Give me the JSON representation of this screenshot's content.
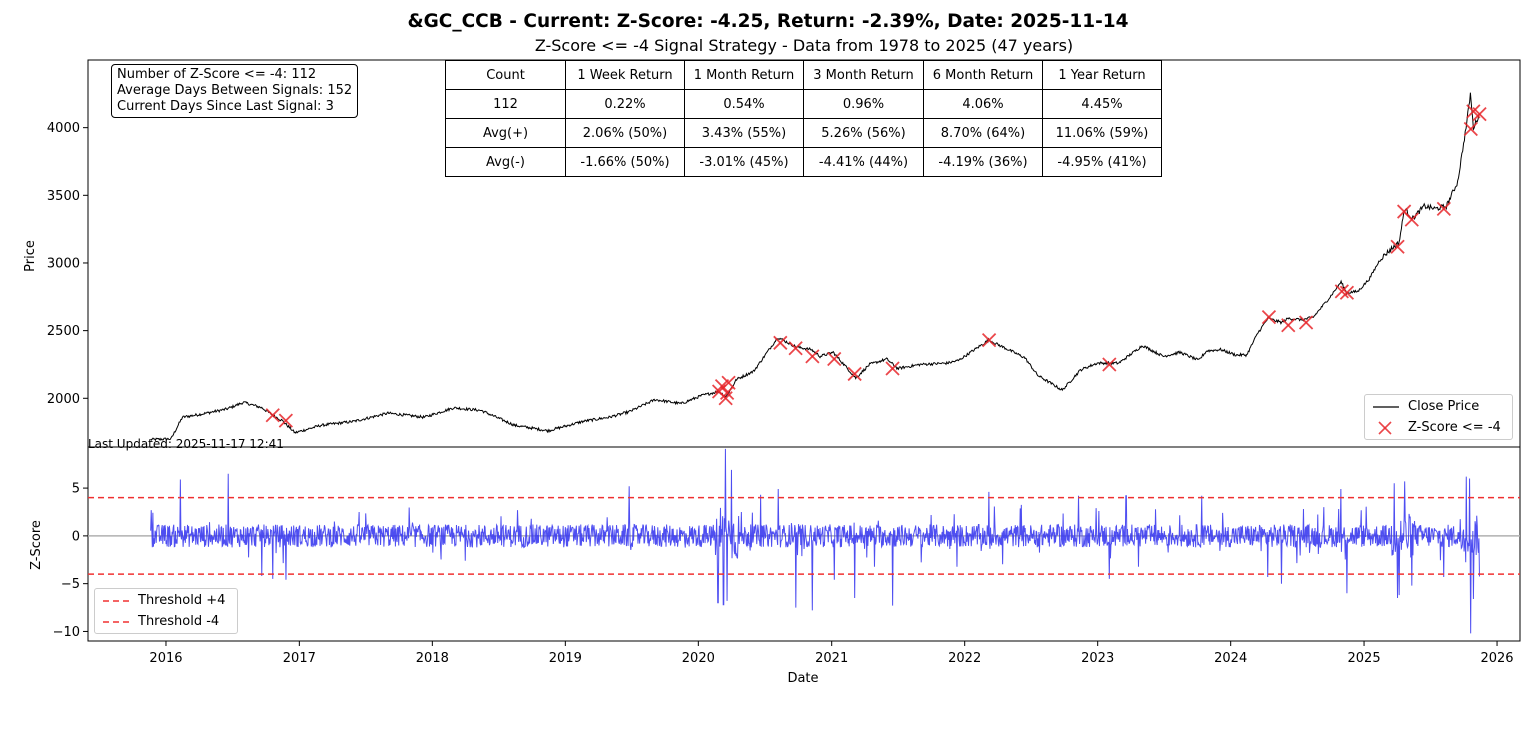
{
  "title": "&GC_CCB - Current: Z-Score: -4.25, Return: -2.39%, Date: 2025-11-14",
  "subtitle": "Z-Score <= -4 Signal Strategy - Data from 1978 to 2025 (47 years)",
  "info": {
    "line1": "Number of Z-Score <= -4: 112",
    "line2": "Average Days Between Signals: 152",
    "line3": "Current Days Since Last Signal: 3"
  },
  "last_updated": "Last Updated: 2025-11-17 12:41",
  "stats_table": {
    "header": [
      "Count",
      "1 Week Return",
      "1 Month Return",
      "3 Month Return",
      "6 Month Return",
      "1 Year Return"
    ],
    "rows": [
      [
        "112",
        "0.22%",
        "0.54%",
        "0.96%",
        "4.06%",
        "4.45%"
      ],
      [
        "Avg(+)",
        "2.06% (50%)",
        "3.43% (55%)",
        "5.26% (56%)",
        "8.70% (64%)",
        "11.06% (59%)"
      ],
      [
        "Avg(-)",
        "-1.66% (50%)",
        "-3.01% (45%)",
        "-4.41% (44%)",
        "-4.19% (36%)",
        "-4.95% (41%)"
      ]
    ]
  },
  "legend_top": {
    "line": "Close Price",
    "marker": "Z-Score <= -4"
  },
  "legend_bottom": {
    "upper": "Threshold +4",
    "lower": "Threshold -4"
  },
  "colors": {
    "price": "#000000",
    "signal": "#e8262a",
    "zscore": "#3b3bf0",
    "threshold": "#f03030",
    "zero": "#b0b0b0"
  },
  "chart_data": [
    {
      "type": "line",
      "ylabel": "Price",
      "ylim": [
        1640,
        4500
      ],
      "yticks": [
        2000,
        2500,
        3000,
        3500,
        4000
      ],
      "xlim": [
        "2015-06-01",
        "2026-03-05"
      ],
      "xticks": [
        "2016",
        "2017",
        "2018",
        "2019",
        "2020",
        "2021",
        "2022",
        "2023",
        "2024",
        "2025",
        "2026"
      ],
      "grid": false,
      "legend_placement": "lower-right",
      "series": [
        {
          "name": "Close Price",
          "x": [
            "2015-11-20",
            "2016-01-15",
            "2016-02-15",
            "2016-04-01",
            "2016-06-15",
            "2016-08-01",
            "2016-09-20",
            "2016-10-20",
            "2016-11-15",
            "2016-12-20",
            "2017-03-01",
            "2017-06-01",
            "2017-09-01",
            "2017-12-10",
            "2018-03-01",
            "2018-05-15",
            "2018-08-15",
            "2018-11-15",
            "2019-02-20",
            "2019-05-01",
            "2019-06-25",
            "2019-09-04",
            "2019-11-15",
            "2020-01-10",
            "2020-02-24",
            "2020-03-18",
            "2020-04-15",
            "2020-06-01",
            "2020-08-06",
            "2020-09-25",
            "2020-11-06",
            "2020-11-30",
            "2021-01-05",
            "2021-03-08",
            "2021-04-15",
            "2021-06-01",
            "2021-07-01",
            "2021-09-01",
            "2021-11-15",
            "2021-12-15",
            "2022-03-08",
            "2022-04-15",
            "2022-06-15",
            "2022-07-20",
            "2022-09-26",
            "2022-11-15",
            "2022-12-31",
            "2023-02-28",
            "2023-05-04",
            "2023-06-30",
            "2023-08-15",
            "2023-10-05",
            "2023-10-27",
            "2023-12-04",
            "2024-01-15",
            "2024-02-14",
            "2024-03-15",
            "2024-04-12",
            "2024-05-20",
            "2024-06-07",
            "2024-07-17",
            "2024-08-15",
            "2024-09-30",
            "2024-10-30",
            "2024-11-14",
            "2024-12-15",
            "2025-01-15",
            "2025-02-15",
            "2025-03-15",
            "2025-04-07",
            "2025-04-22",
            "2025-05-15",
            "2025-06-15",
            "2025-07-15",
            "2025-08-15",
            "2025-09-15",
            "2025-10-08",
            "2025-10-20",
            "2025-10-28",
            "2025-11-14"
          ],
          "values": [
            1695,
            1700,
            1860,
            1880,
            1920,
            1970,
            1930,
            1875,
            1835,
            1745,
            1800,
            1830,
            1890,
            1860,
            1930,
            1910,
            1800,
            1760,
            1830,
            1860,
            1900,
            1990,
            1960,
            2020,
            2050,
            2015,
            2140,
            2200,
            2450,
            2380,
            2360,
            2310,
            2340,
            2150,
            2250,
            2290,
            2220,
            2250,
            2260,
            2280,
            2430,
            2380,
            2300,
            2170,
            2060,
            2210,
            2260,
            2260,
            2390,
            2310,
            2340,
            2280,
            2350,
            2360,
            2320,
            2320,
            2480,
            2590,
            2560,
            2590,
            2580,
            2600,
            2750,
            2860,
            2780,
            2790,
            2880,
            3030,
            3100,
            3150,
            3400,
            3330,
            3420,
            3400,
            3420,
            3600,
            4000,
            4250,
            4000,
            4100
          ]
        },
        {
          "name": "Z-Score <= -4",
          "type": "scatter",
          "x": [
            "2016-10-20",
            "2016-11-25",
            "2020-02-27",
            "2020-03-06",
            "2020-03-16",
            "2020-03-20",
            "2020-03-24",
            "2020-08-13",
            "2020-09-24",
            "2020-11-09",
            "2021-01-08",
            "2021-03-05",
            "2021-06-17",
            "2022-03-09",
            "2023-02-02",
            "2024-04-15",
            "2024-06-07",
            "2024-07-26",
            "2024-11-01",
            "2024-11-15",
            "2025-04-03",
            "2025-04-21",
            "2025-05-12",
            "2025-08-08",
            "2025-10-21",
            "2025-10-28",
            "2025-11-14"
          ],
          "values": [
            1875,
            1835,
            2050,
            2090,
            2000,
            2040,
            2115,
            2410,
            2370,
            2310,
            2290,
            2180,
            2220,
            2430,
            2250,
            2600,
            2540,
            2560,
            2790,
            2780,
            3120,
            3380,
            3320,
            3400,
            3990,
            4120,
            4100
          ]
        }
      ]
    },
    {
      "type": "line",
      "ylabel": "Z-Score",
      "xlabel": "Date",
      "ylim": [
        -11,
        9.3
      ],
      "yticks": [
        -10,
        -5,
        0,
        5
      ],
      "xlim": [
        "2015-06-01",
        "2026-03-05"
      ],
      "xticks": [
        "2016",
        "2017",
        "2018",
        "2019",
        "2020",
        "2021",
        "2022",
        "2023",
        "2024",
        "2025",
        "2026"
      ],
      "grid": false,
      "legend_placement": "lower-left",
      "thresholds": [
        4,
        -4
      ],
      "series": [
        {
          "name": "Z-Score",
          "peaks_x": [
            "2016-02-10",
            "2016-06-20",
            "2016-09-20",
            "2016-10-20",
            "2016-11-25",
            "2019-06-25",
            "2020-02-24",
            "2020-03-10",
            "2020-03-16",
            "2020-03-20",
            "2020-04-01",
            "2020-06-20",
            "2020-08-07",
            "2020-09-24",
            "2020-11-09",
            "2021-01-08",
            "2021-03-05",
            "2021-06-17",
            "2022-03-09",
            "2022-11-10",
            "2023-02-02",
            "2023-03-20",
            "2023-10-13",
            "2024-04-12",
            "2024-05-20",
            "2024-10-30",
            "2024-11-15",
            "2025-03-25",
            "2025-04-03",
            "2025-04-07",
            "2025-04-22",
            "2025-05-12",
            "2025-08-08",
            "2025-10-08",
            "2025-10-17",
            "2025-10-21",
            "2025-10-28",
            "2025-11-14"
          ],
          "peaks_values": [
            5.9,
            6.5,
            -4.2,
            -4.5,
            -4.6,
            5.2,
            -7.0,
            -7.2,
            9.1,
            -6.8,
            6.9,
            4.3,
            4.9,
            -7.5,
            -7.8,
            -4.6,
            -6.5,
            -7.3,
            4.6,
            4.2,
            -4.5,
            4.2,
            4.2,
            -4.3,
            -5.0,
            4.9,
            -6.0,
            5.5,
            -6.5,
            -6.2,
            5.7,
            -5.2,
            -4.3,
            6.2,
            6.0,
            -10.2,
            -6.6,
            -4.25
          ]
        }
      ]
    }
  ]
}
